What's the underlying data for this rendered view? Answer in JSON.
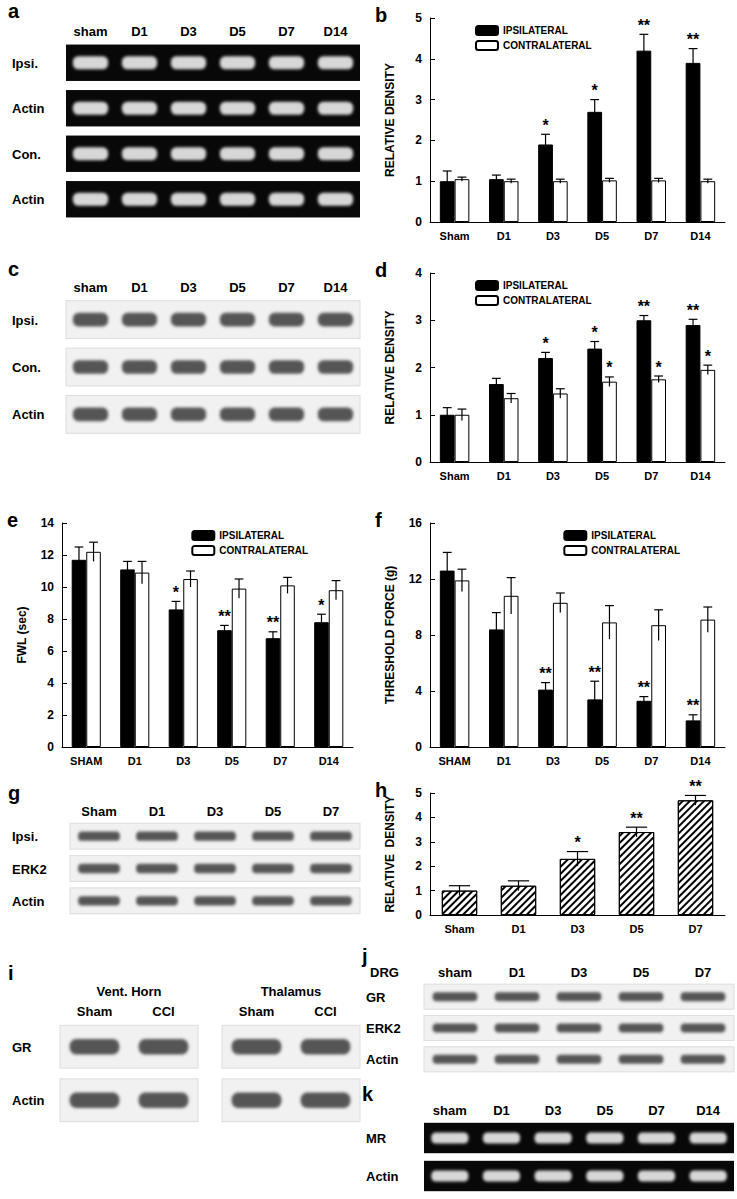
{
  "chart_data": [
    {
      "title": "b",
      "type": "bar",
      "categories": [
        "Sham",
        "D1",
        "D3",
        "D5",
        "D7",
        "D14"
      ],
      "y_label": "RELATIVE DENSITY",
      "ylim": [
        0,
        5
      ],
      "yticks": [
        0,
        1,
        2,
        3,
        4,
        5
      ],
      "grid": false,
      "legend": "top-left",
      "series": [
        {
          "name": "IPSILATERAL",
          "color": "#000000",
          "values": [
            1.0,
            1.05,
            1.9,
            2.7,
            4.2,
            3.9
          ],
          "errors": [
            0.25,
            0.1,
            0.25,
            0.3,
            0.4,
            0.35
          ],
          "annotations": [
            null,
            null,
            "*",
            "*",
            "**",
            "**"
          ]
        },
        {
          "name": "CONTRALATERAL",
          "color": "#ffffff",
          "values": [
            1.05,
            1.0,
            1.0,
            1.02,
            1.02,
            1.0
          ],
          "errors": [
            0.05,
            0.05,
            0.05,
            0.05,
            0.05,
            0.05
          ]
        }
      ]
    },
    {
      "title": "d",
      "type": "bar",
      "categories": [
        "Sham",
        "D1",
        "D3",
        "D5",
        "D7",
        "D14"
      ],
      "y_label": "RELATIVE DENSITY",
      "ylim": [
        0,
        4
      ],
      "yticks": [
        0,
        1,
        2,
        3,
        4
      ],
      "grid": false,
      "legend": "top-left",
      "series": [
        {
          "name": "IPSILATERAL",
          "color": "#000000",
          "values": [
            1.0,
            1.65,
            2.2,
            2.4,
            3.0,
            2.9
          ],
          "errors": [
            0.15,
            0.12,
            0.12,
            0.15,
            0.1,
            0.12
          ],
          "annotations": [
            null,
            null,
            "*",
            "*",
            "**",
            "**"
          ]
        },
        {
          "name": "CONTRALATERAL",
          "color": "#ffffff",
          "values": [
            1.0,
            1.35,
            1.45,
            1.7,
            1.75,
            1.95
          ],
          "errors": [
            0.12,
            0.1,
            0.1,
            0.1,
            0.07,
            0.1
          ],
          "annotations": [
            null,
            null,
            null,
            "*",
            "*",
            "*"
          ]
        }
      ]
    },
    {
      "title": "e",
      "type": "bar",
      "categories": [
        "SHAM",
        "D1",
        "D3",
        "D5",
        "D7",
        "D14"
      ],
      "y_label": "FWL (sec)",
      "ylim": [
        0,
        14
      ],
      "yticks": [
        0,
        2,
        4,
        6,
        8,
        10,
        12,
        14
      ],
      "grid": false,
      "legend": "top-right",
      "series": [
        {
          "name": "IPSILATERAL",
          "color": "#000000",
          "values": [
            11.7,
            11.1,
            8.6,
            7.3,
            6.8,
            7.8
          ],
          "errors": [
            0.8,
            0.5,
            0.5,
            0.3,
            0.4,
            0.5
          ],
          "annotations": [
            null,
            null,
            "*",
            "**",
            "**",
            "*"
          ]
        },
        {
          "name": "CONTRALATERAL",
          "color": "#ffffff",
          "values": [
            12.2,
            10.9,
            10.5,
            9.9,
            10.1,
            9.8
          ],
          "errors": [
            0.6,
            0.7,
            0.5,
            0.6,
            0.5,
            0.6
          ]
        }
      ]
    },
    {
      "title": "f",
      "type": "bar",
      "categories": [
        "SHAM",
        "D1",
        "D3",
        "D5",
        "D7",
        "D14"
      ],
      "y_label": "THRESHOLD FORCE (g)",
      "ylim": [
        0,
        16
      ],
      "yticks": [
        0,
        4,
        8,
        12,
        16
      ],
      "grid": false,
      "legend": "top-right",
      "series": [
        {
          "name": "IPSILATERAL",
          "color": "#000000",
          "values": [
            12.6,
            8.4,
            4.1,
            3.4,
            3.3,
            1.9
          ],
          "errors": [
            1.3,
            1.2,
            0.5,
            1.3,
            0.3,
            0.4
          ],
          "annotations": [
            null,
            null,
            "**",
            "**",
            "**",
            "**"
          ]
        },
        {
          "name": "CONTRALATERAL",
          "color": "#ffffff",
          "values": [
            11.9,
            10.8,
            10.3,
            8.9,
            8.7,
            9.1
          ],
          "errors": [
            0.8,
            1.3,
            0.7,
            1.2,
            1.1,
            0.9
          ]
        }
      ]
    },
    {
      "title": "h",
      "type": "bar",
      "categories": [
        "Sham",
        "D1",
        "D3",
        "D5",
        "D7"
      ],
      "y_label": "RELATIVE  DENSITY",
      "ylim": [
        0,
        5
      ],
      "yticks": [
        0,
        1,
        2,
        3,
        4,
        5
      ],
      "grid": false,
      "series": [
        {
          "color": "#ffffff",
          "values": [
            1.0,
            1.2,
            2.3,
            3.4,
            4.7
          ],
          "errors": [
            0.2,
            0.2,
            0.3,
            0.2,
            0.2
          ],
          "annotations": [
            null,
            null,
            "*",
            "**",
            "**"
          ]
        }
      ]
    }
  ],
  "blots": [
    {
      "title": "a",
      "type": "gel",
      "color": "#000000",
      "lanes": [
        "sham",
        "D1",
        "D3",
        "D5",
        "D7",
        "D14"
      ],
      "rows": [
        "Ipsi.",
        "Actin",
        "Con.",
        "Actin"
      ]
    },
    {
      "title": "c",
      "type": "gel",
      "color": "#ffffff",
      "lanes": [
        "sham",
        "D1",
        "D3",
        "D5",
        "D7",
        "D14"
      ],
      "rows": [
        "Ipsi.",
        "Con.",
        "Actin"
      ]
    },
    {
      "title": "g",
      "type": "gel",
      "color": "#ffffff",
      "lanes": [
        "Sham",
        "D1",
        "D3",
        "D5",
        "D7"
      ],
      "rows": [
        "Ipsi.",
        "ERK2",
        "Actin"
      ]
    },
    {
      "title": "i",
      "type": "gel",
      "color": "#ffffff",
      "groups": [
        {
          "name": "Vent. Horn",
          "lanes": [
            "Sham",
            "CCI"
          ]
        },
        {
          "name": "Thalamus",
          "lanes": [
            "Sham",
            "CCI"
          ]
        }
      ],
      "rows": [
        "GR",
        "Actin"
      ]
    },
    {
      "title": "j",
      "subtitle": "DRG",
      "type": "gel",
      "color": "#ffffff",
      "lanes": [
        "sham",
        "D1",
        "D3",
        "D5",
        "D7"
      ],
      "rows": [
        "GR",
        "ERK2",
        "Actin"
      ]
    },
    {
      "title": "k",
      "type": "gel",
      "color": "#000000",
      "lanes": [
        "sham",
        "D1",
        "D3",
        "D5",
        "D7",
        "D14"
      ],
      "rows": [
        "MR",
        "Actin"
      ]
    }
  ]
}
